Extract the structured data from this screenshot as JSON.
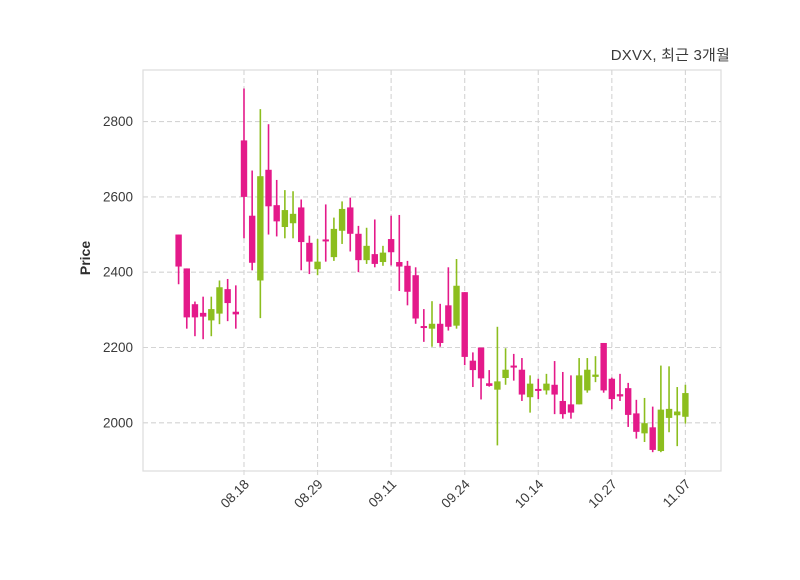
{
  "title": "DXVX, 최근 3개월",
  "y_axis": {
    "label": "Price",
    "ticks": [
      2000,
      2200,
      2400,
      2600,
      2800
    ],
    "range": [
      1872,
      2937
    ]
  },
  "x_axis": {
    "tick_labels": [
      "08.18",
      "08.29",
      "09.11",
      "09.24",
      "10.14",
      "10.27",
      "11.07"
    ],
    "tick_candle_indices": [
      8,
      17,
      26,
      35,
      44,
      53,
      62
    ]
  },
  "colors": {
    "up": "#e41a8a",
    "down": "#8cbe1e",
    "grid": "#d4d4d4",
    "spine": "#dcdcdc",
    "tick_text": "#3a3a3a"
  },
  "chart_data": {
    "type": "candlestick",
    "title": "DXVX, 최근 3개월",
    "symbol": "DXVX",
    "period_label": "최근 3개월",
    "ylabel": "Price",
    "ylim": [
      1872,
      2937
    ],
    "grid": "dashed",
    "note": "candles are [open, high, low, close]; close>=open renders pink (up), close<open renders green (down)",
    "candles": [
      [
        2415,
        2500,
        2368,
        2500
      ],
      [
        2280,
        2410,
        2250,
        2410
      ],
      [
        2280,
        2322,
        2230,
        2315
      ],
      [
        2282,
        2335,
        2222,
        2292
      ],
      [
        2302,
        2335,
        2230,
        2272
      ],
      [
        2360,
        2378,
        2262,
        2290
      ],
      [
        2318,
        2382,
        2270,
        2355
      ],
      [
        2288,
        2365,
        2250,
        2295
      ],
      [
        2600,
        2888,
        2490,
        2750
      ],
      [
        2425,
        2670,
        2405,
        2550
      ],
      [
        2655,
        2833,
        2278,
        2378
      ],
      [
        2575,
        2793,
        2500,
        2672
      ],
      [
        2535,
        2645,
        2495,
        2578
      ],
      [
        2565,
        2618,
        2490,
        2520
      ],
      [
        2555,
        2615,
        2490,
        2530
      ],
      [
        2480,
        2593,
        2405,
        2572
      ],
      [
        2428,
        2497,
        2395,
        2478
      ],
      [
        2428,
        2488,
        2392,
        2408
      ],
      [
        2482,
        2580,
        2428,
        2487
      ],
      [
        2515,
        2545,
        2430,
        2440
      ],
      [
        2568,
        2588,
        2475,
        2510
      ],
      [
        2502,
        2598,
        2455,
        2572
      ],
      [
        2432,
        2523,
        2400,
        2502
      ],
      [
        2470,
        2518,
        2422,
        2432
      ],
      [
        2422,
        2540,
        2413,
        2448
      ],
      [
        2452,
        2470,
        2417,
        2427
      ],
      [
        2453,
        2550,
        2418,
        2488
      ],
      [
        2415,
        2552,
        2350,
        2427
      ],
      [
        2348,
        2430,
        2312,
        2417
      ],
      [
        2277,
        2413,
        2263,
        2392
      ],
      [
        2252,
        2302,
        2215,
        2257
      ],
      [
        2263,
        2323,
        2202,
        2250
      ],
      [
        2212,
        2316,
        2202,
        2263
      ],
      [
        2255,
        2413,
        2245,
        2312
      ],
      [
        2364,
        2435,
        2250,
        2258
      ],
      [
        2175,
        2347,
        2153,
        2347
      ],
      [
        2140,
        2187,
        2095,
        2165
      ],
      [
        2118,
        2200,
        2062,
        2200
      ],
      [
        2098,
        2140,
        2096,
        2105
      ],
      [
        2110,
        2255,
        1940,
        2088
      ],
      [
        2141,
        2198,
        2101,
        2119
      ],
      [
        2148,
        2183,
        2112,
        2152
      ],
      [
        2075,
        2172,
        2058,
        2141
      ],
      [
        2104,
        2126,
        2027,
        2068
      ],
      [
        2086,
        2117,
        2063,
        2090
      ],
      [
        2104,
        2130,
        2075,
        2086
      ],
      [
        2075,
        2164,
        2023,
        2101
      ],
      [
        2023,
        2135,
        2011,
        2058
      ],
      [
        2027,
        2126,
        2011,
        2049
      ],
      [
        2126,
        2172,
        2049,
        2049
      ],
      [
        2141,
        2172,
        2080,
        2086
      ],
      [
        2128,
        2177,
        2108,
        2122
      ],
      [
        2086,
        2212,
        2080,
        2212
      ],
      [
        2063,
        2120,
        2036,
        2117
      ],
      [
        2070,
        2130,
        2058,
        2076
      ],
      [
        2021,
        2106,
        1989,
        2092
      ],
      [
        1976,
        2061,
        1958,
        2025
      ],
      [
        1999,
        2066,
        1949,
        1972
      ],
      [
        1928,
        2043,
        1922,
        1988
      ],
      [
        2035,
        2152,
        1922,
        1925
      ],
      [
        2037,
        2150,
        1975,
        2013
      ],
      [
        2030,
        2095,
        1938,
        2020
      ],
      [
        2079,
        2101,
        1998,
        2016
      ]
    ]
  }
}
